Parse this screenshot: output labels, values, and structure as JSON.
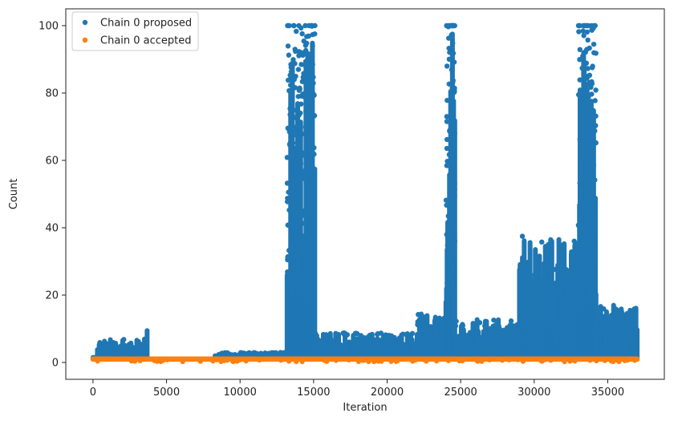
{
  "chart_data": {
    "type": "scatter",
    "xlabel": "Iteration",
    "ylabel": "Count",
    "xlim": [
      -1850,
      38850
    ],
    "ylim": [
      -5,
      105
    ],
    "xticks": [
      0,
      5000,
      10000,
      15000,
      20000,
      25000,
      30000,
      35000
    ],
    "yticks": [
      0,
      20,
      40,
      60,
      80,
      100
    ],
    "xtick_labels": [
      "0",
      "5000",
      "10000",
      "15000",
      "20000",
      "25000",
      "30000",
      "35000"
    ],
    "ytick_labels": [
      "0",
      "20",
      "40",
      "60",
      "80",
      "100"
    ],
    "grid": false,
    "legend_position": "upper-left",
    "series": [
      {
        "name": "Chain 0 proposed",
        "color": "#1f77b4",
        "segments": [
          {
            "x_start": 0,
            "x_end": 300,
            "min": 1,
            "max": 1
          },
          {
            "x_start": 300,
            "x_end": 3600,
            "min": 1,
            "max": 7
          },
          {
            "x_start": 3600,
            "x_end": 3700,
            "min": 1,
            "max": 11
          },
          {
            "x_start": 8300,
            "x_end": 12000,
            "min": 1,
            "max": 3
          },
          {
            "x_start": 12000,
            "x_end": 13200,
            "min": 1,
            "max": 3
          },
          {
            "x_start": 13200,
            "x_end": 15100,
            "min": 1,
            "max": 100
          },
          {
            "x_start": 15100,
            "x_end": 22000,
            "min": 1,
            "max": 9
          },
          {
            "x_start": 22000,
            "x_end": 24000,
            "min": 1,
            "max": 15
          },
          {
            "x_start": 24000,
            "x_end": 24600,
            "min": 1,
            "max": 100
          },
          {
            "x_start": 24600,
            "x_end": 29000,
            "min": 1,
            "max": 13
          },
          {
            "x_start": 29000,
            "x_end": 33000,
            "min": 1,
            "max": 38
          },
          {
            "x_start": 33000,
            "x_end": 34200,
            "min": 1,
            "max": 100
          },
          {
            "x_start": 34200,
            "x_end": 37000,
            "min": 1,
            "max": 17
          }
        ]
      },
      {
        "name": "Chain 0 accepted",
        "color": "#ff7f0e",
        "segments": [
          {
            "x_start": 0,
            "x_end": 37000,
            "min": 1,
            "max": 1
          }
        ]
      }
    ]
  }
}
